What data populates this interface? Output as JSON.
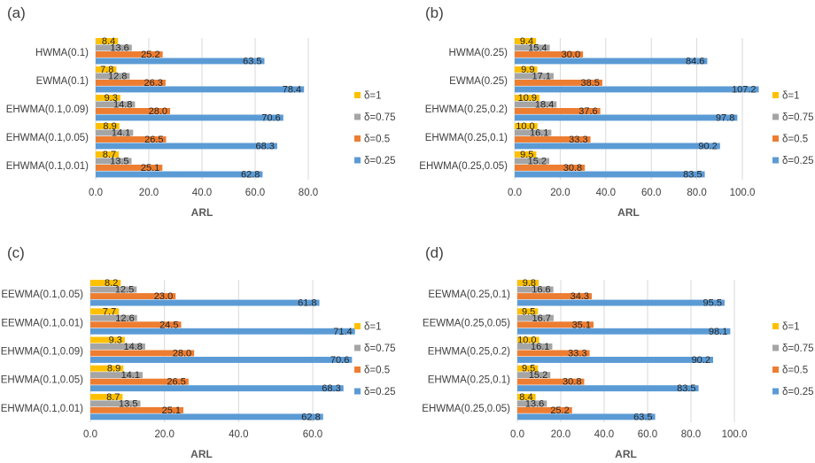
{
  "colors": {
    "d1": "#FFC000",
    "d075": "#A5A5A5",
    "d05": "#ED7D31",
    "d025": "#5B9BD5",
    "grid": "#D9D9D9",
    "text": "#404040"
  },
  "legend_labels": [
    "δ=1",
    "δ=0.75",
    "δ=0.5",
    "δ=0.25"
  ],
  "chart_data": [
    {
      "type": "bar",
      "orientation": "horizontal",
      "panel_label": "(a)",
      "xlabel": "ARL",
      "xlim": [
        0,
        80
      ],
      "xticks": [
        "0.0",
        "20.0",
        "40.0",
        "60.0",
        "80.0"
      ],
      "categories": [
        "HWMA(0.1)",
        "EWMA(0.1)",
        "EHWMA(0.1,0.09)",
        "EHWMA(0.1,0.05)",
        "EHWMA(0.1,0.01)"
      ],
      "series": [
        {
          "name": "δ=1",
          "values": [
            8.4,
            7.8,
            9.3,
            8.9,
            8.7
          ]
        },
        {
          "name": "δ=0.75",
          "values": [
            13.6,
            12.8,
            14.8,
            14.1,
            13.5
          ]
        },
        {
          "name": "δ=0.5",
          "values": [
            25.2,
            26.3,
            28.0,
            26.5,
            25.1
          ]
        },
        {
          "name": "δ=0.25",
          "values": [
            63.5,
            78.4,
            70.6,
            68.3,
            62.8
          ]
        }
      ],
      "legend": "right"
    },
    {
      "type": "bar",
      "orientation": "horizontal",
      "panel_label": "(b)",
      "xlabel": "ARL",
      "xlim": [
        0,
        110
      ],
      "xticks": [
        "0.0",
        "20.0",
        "40.0",
        "60.0",
        "80.0",
        "100.0"
      ],
      "categories": [
        "HWMA(0.25)",
        "EWMA(0.25)",
        "EHWMA(0.25,0.2)",
        "EHWMA(0.25,0.1)",
        "EHWMA(0.25,0.05)"
      ],
      "series": [
        {
          "name": "δ=1",
          "values": [
            9.4,
            9.9,
            10.9,
            10.0,
            9.5
          ]
        },
        {
          "name": "δ=0.75",
          "values": [
            15.4,
            17.1,
            18.4,
            16.1,
            15.2
          ]
        },
        {
          "name": "δ=0.5",
          "values": [
            30.0,
            38.5,
            37.6,
            33.3,
            30.8
          ]
        },
        {
          "name": "δ=0.25",
          "values": [
            84.6,
            107.2,
            97.8,
            90.2,
            83.5
          ]
        }
      ],
      "legend": "right"
    },
    {
      "type": "bar",
      "orientation": "horizontal",
      "panel_label": "(c)",
      "xlabel": "ARL",
      "xlim": [
        0,
        70
      ],
      "xticks": [
        "0.0",
        "20.0",
        "40.0",
        "60.0"
      ],
      "categories": [
        "EEWMA(0.1,0.05)",
        "EEWMA(0.1,0.01)",
        "EHWMA(0.1,0.09)",
        "EHWMA(0.1,0.05)",
        "EHWMA(0.1,0.01)"
      ],
      "series": [
        {
          "name": "δ=1",
          "values": [
            8.2,
            7.7,
            9.3,
            8.9,
            8.7
          ]
        },
        {
          "name": "δ=0.75",
          "values": [
            12.5,
            12.6,
            14.8,
            14.1,
            13.5
          ]
        },
        {
          "name": "δ=0.5",
          "values": [
            23.0,
            24.5,
            28.0,
            26.5,
            25.1
          ]
        },
        {
          "name": "δ=0.25",
          "values": [
            61.8,
            71.4,
            70.6,
            68.3,
            62.8
          ]
        }
      ],
      "legend": "right"
    },
    {
      "type": "bar",
      "orientation": "horizontal",
      "panel_label": "(d)",
      "xlabel": "ARL",
      "xlim": [
        0,
        100
      ],
      "xticks": [
        "0.0",
        "20.0",
        "40.0",
        "60.0",
        "80.0",
        "100.0"
      ],
      "categories": [
        "EEWMA(0.25,0.1)",
        "EEWMA(0.25,0.05)",
        "EHWMA(0.25,0.2)",
        "EHWMA(0.25,0.1)",
        "EHWMA(0.25,0.05)"
      ],
      "series": [
        {
          "name": "δ=1",
          "values": [
            9.8,
            9.5,
            10.0,
            9.5,
            8.4
          ]
        },
        {
          "name": "δ=0.75",
          "values": [
            16.6,
            16.7,
            16.1,
            15.2,
            13.6
          ]
        },
        {
          "name": "δ=0.5",
          "values": [
            34.3,
            35.1,
            33.3,
            30.8,
            25.2
          ]
        },
        {
          "name": "δ=0.25",
          "values": [
            95.5,
            98.1,
            90.2,
            83.5,
            63.5
          ]
        }
      ],
      "legend": "right"
    }
  ]
}
